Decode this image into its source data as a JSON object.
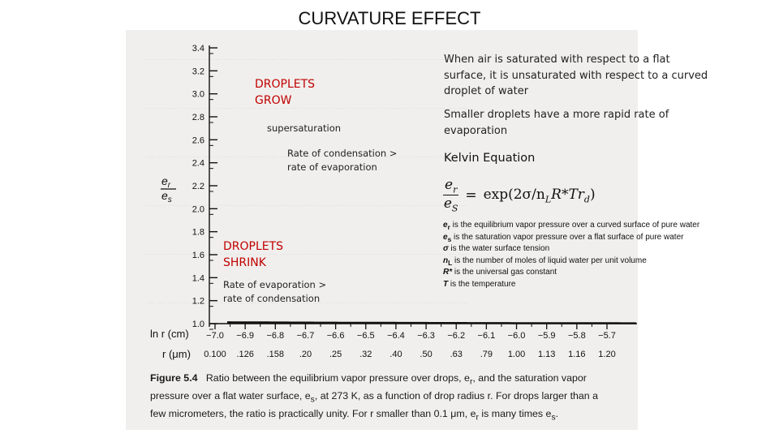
{
  "title": "CURVATURE EFFECT",
  "y_axis": {
    "label_num": "e",
    "label_num_sub": "r",
    "label_den": "e",
    "label_den_sub": "s",
    "ticks": [
      "3.4",
      "3.2",
      "3.0",
      "2.8",
      "2.6",
      "2.4",
      "2.2",
      "2.0",
      "1.8",
      "1.6",
      "1.4",
      "1.2",
      "1.0"
    ]
  },
  "x_axis_lnr": {
    "label": "ln r (cm)",
    "ticks": [
      "−7.0",
      "−6.9",
      "−6.8",
      "−6.7",
      "−6.6",
      "−6.5",
      "−6.4",
      "−6.3",
      "−6.2",
      "−6.1",
      "−6.0",
      "−5.9",
      "−5.8",
      "−5.7"
    ]
  },
  "x_axis_r": {
    "label": "r (μm)",
    "ticks": [
      "0.100",
      ".126",
      ".158",
      ".20",
      ".25",
      ".32",
      ".40",
      ".50",
      ".63",
      ".79",
      "1.00",
      "1.13",
      "1.16",
      "1.20"
    ]
  },
  "overlays": {
    "grow_line1": "DROPLETS",
    "grow_line2": "GROW",
    "supersaturation": "supersaturation",
    "condensation_line1": "Rate of condensation >",
    "condensation_line2": "rate of evaporation",
    "shrink_line1": "DROPLETS",
    "shrink_line2": "SHRINK",
    "evaporation_line1": "Rate of evaporation >",
    "evaporation_line2": "rate of condensation"
  },
  "caption": {
    "figure_label": "Figure 5.4",
    "text_1": "Ratio between the equilibrium vapor pressure over drops, e",
    "sub_r": "r",
    "text_2": ", and the saturation vapor pressure over a flat water surface, e",
    "sub_s": "s",
    "text_3": ", at 273 K, as a function of drop radius r. For drops larger than a few micrometers, the ratio is practically unity. For r smaller than 0.1 μm, e",
    "sub_r2": "r",
    "text_4": " is many times e",
    "sub_s2": "s",
    "text_5": "."
  },
  "right_panel": {
    "para1": "When air is saturated with respect to a flat surface, it is unsaturated with respect to a curved droplet of water",
    "para2": "Smaller droplets have a more rapid rate of evaporation",
    "heading": "Kelvin Equation",
    "eq_num": "e",
    "eq_num_sub": "r",
    "eq_den": "e",
    "eq_den_sub": "S",
    "eq_equals": "=",
    "eq_rhs": "exp(2σ/n",
    "eq_rhs_sub": "L",
    "eq_rhs_2": "R*Tr",
    "eq_rhs_sub2": "d",
    "eq_rhs_3": ")",
    "definitions": [
      {
        "sym": "e",
        "sub": "r",
        "text": " is the equilibrium vapor pressure over a curved surface of pure water"
      },
      {
        "sym": "e",
        "sub": "s",
        "text": " is the saturation vapor pressure over a flat surface of pure water"
      },
      {
        "sym": "σ",
        "sub": "",
        "text": " is the water surface tension"
      },
      {
        "sym": "n",
        "sub": "L",
        "text": " is the number of moles of liquid water per unit volume"
      },
      {
        "sym": "R*",
        "sub": "",
        "text": " is the universal gas constant"
      },
      {
        "sym": "T",
        "sub": "",
        "text": " is the temperature"
      }
    ]
  }
}
